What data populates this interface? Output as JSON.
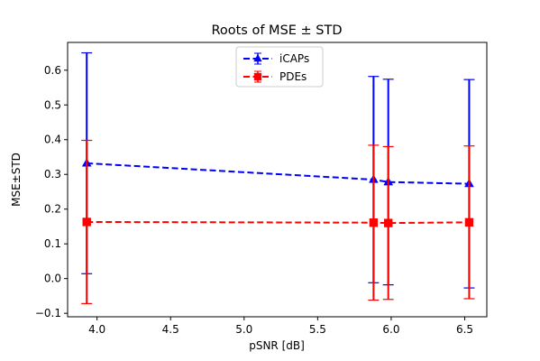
{
  "chart_data": {
    "type": "line",
    "title": "Roots of MSE ± STD",
    "xlabel": "pSNR [dB]",
    "ylabel": "MSE±STD",
    "xlim": [
      3.8,
      6.65
    ],
    "ylim": [
      -0.11,
      0.68
    ],
    "xticks": [
      4.0,
      4.5,
      5.0,
      5.5,
      6.0,
      6.5
    ],
    "xtick_labels": [
      "4.0",
      "4.5",
      "5.0",
      "5.5",
      "6.0",
      "6.5"
    ],
    "yticks": [
      -0.1,
      0.0,
      0.1,
      0.2,
      0.3,
      0.4,
      0.5,
      0.6
    ],
    "ytick_labels": [
      "−0.1",
      "0.0",
      "0.1",
      "0.2",
      "0.3",
      "0.4",
      "0.5",
      "0.6"
    ],
    "grid": false,
    "legend_position": "top-center",
    "series": [
      {
        "name": "iCAPs",
        "color": "#0000ff",
        "marker": "triangle",
        "linestyle": "dashed",
        "x": [
          3.93,
          5.88,
          5.98,
          6.53
        ],
        "y": [
          0.332,
          0.285,
          0.278,
          0.273
        ],
        "err": [
          0.318,
          0.297,
          0.296,
          0.3
        ]
      },
      {
        "name": "PDEs",
        "color": "#ff0000",
        "marker": "square",
        "linestyle": "dashed",
        "x": [
          3.93,
          5.88,
          5.98,
          6.53
        ],
        "y": [
          0.163,
          0.161,
          0.16,
          0.162
        ],
        "err": [
          0.235,
          0.223,
          0.22,
          0.22
        ]
      }
    ]
  }
}
